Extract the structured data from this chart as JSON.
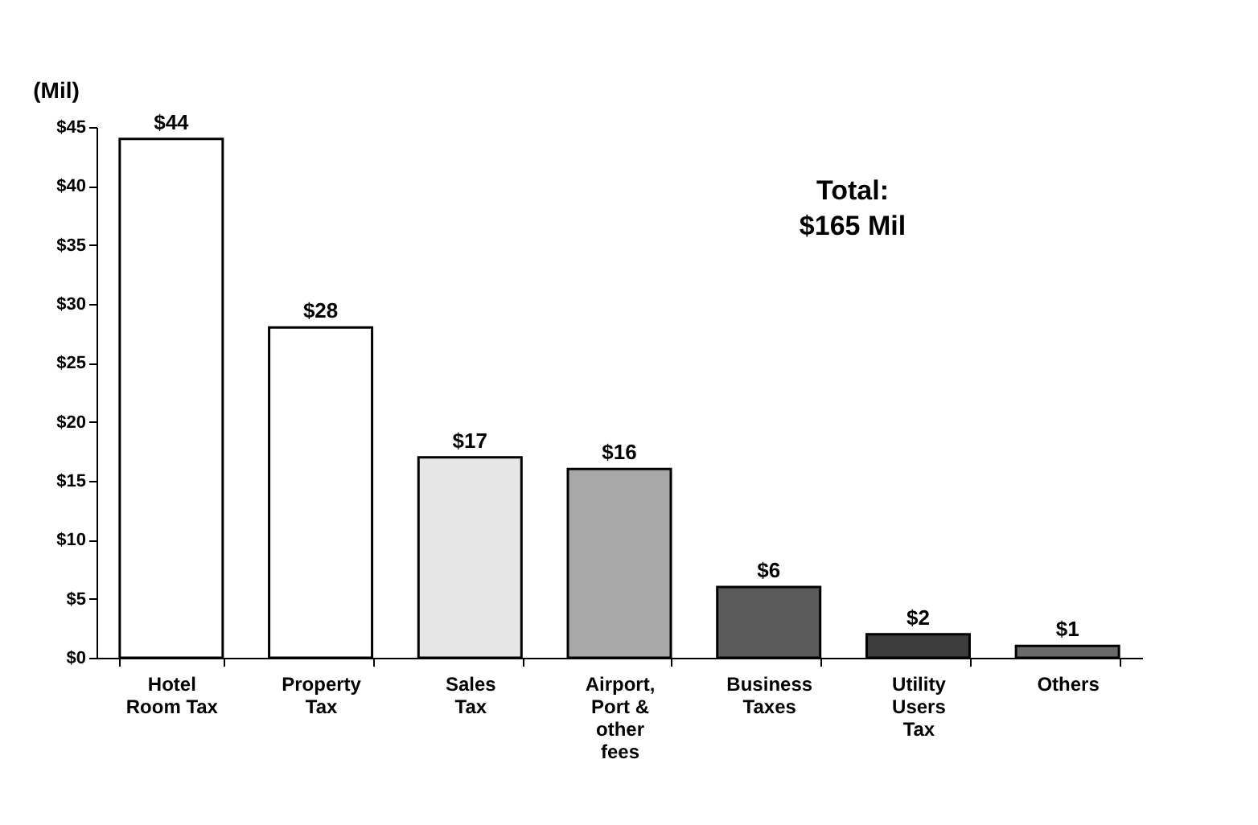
{
  "chart_data": {
    "type": "bar",
    "ylabel": "(Mil)",
    "categories": [
      "Hotel Room Tax",
      "Property Tax",
      "Sales Tax",
      "Airport, Port & other fees",
      "Business Taxes",
      "Utility Users Tax",
      "Others"
    ],
    "values": [
      44,
      28,
      17,
      16,
      6,
      2,
      1
    ],
    "colors": [
      "#ffffff",
      "#ffffff",
      "#e6e6e6",
      "#a8a8a8",
      "#5a5a5a",
      "#3c3c3c",
      "#6a6a6a"
    ],
    "value_labels": [
      "$44",
      "$28",
      "$17",
      "$16",
      "$6",
      "$2",
      "$1"
    ],
    "ylim": [
      0,
      45
    ],
    "yticks": [
      {
        "value": 0,
        "label": "$0"
      },
      {
        "value": 5,
        "label": "$5"
      },
      {
        "value": 10,
        "label": "$10"
      },
      {
        "value": 15,
        "label": "$15"
      },
      {
        "value": 20,
        "label": "$20"
      },
      {
        "value": 25,
        "label": "$25"
      },
      {
        "value": 30,
        "label": "$30"
      },
      {
        "value": 35,
        "label": "$35"
      },
      {
        "value": 40,
        "label": "$40"
      },
      {
        "value": 45,
        "label": "$45"
      }
    ],
    "annotations": [
      "Total: $165 Mil"
    ],
    "grid": false
  }
}
